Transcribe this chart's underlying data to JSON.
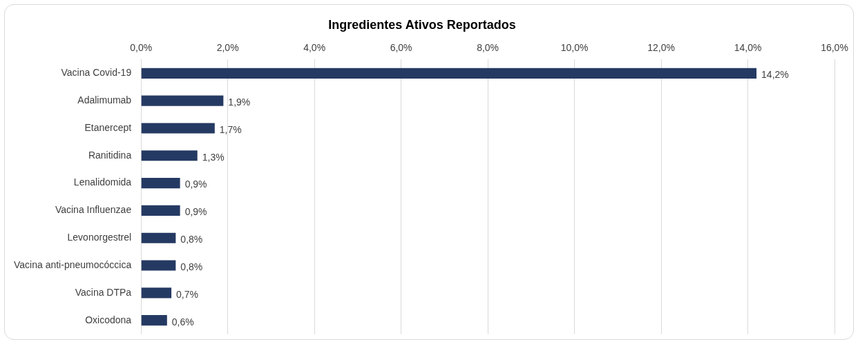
{
  "chart_data": {
    "type": "bar",
    "orientation": "horizontal",
    "title": "Ingredientes Ativos Reportados",
    "categories": [
      "Vacina Covid-19",
      "Adalimumab",
      "Etanercept",
      "Ranitidina",
      "Lenalidomida",
      "Vacina Influenzae",
      "Levonorgestrel",
      "Vacina anti-pneumocóccica",
      "Vacina DTPa",
      "Oxicodona"
    ],
    "values": [
      14.2,
      1.9,
      1.7,
      1.3,
      0.9,
      0.9,
      0.8,
      0.8,
      0.7,
      0.6
    ],
    "value_labels": [
      "14,2%",
      "1,9%",
      "1,7%",
      "1,3%",
      "0,9%",
      "0,9%",
      "0,8%",
      "0,8%",
      "0,7%",
      "0,6%"
    ],
    "color": "#253a63",
    "xlim": [
      0,
      16
    ],
    "xticks": [
      {
        "value": 0,
        "label": "0,0%"
      },
      {
        "value": 2,
        "label": "2,0%"
      },
      {
        "value": 4,
        "label": "4,0%"
      },
      {
        "value": 6,
        "label": "6,0%"
      },
      {
        "value": 8,
        "label": "8,0%"
      },
      {
        "value": 10,
        "label": "10,0%"
      },
      {
        "value": 12,
        "label": "12,0%"
      },
      {
        "value": 14,
        "label": "14,0%"
      },
      {
        "value": 16,
        "label": "16,0%"
      }
    ],
    "grid": "x",
    "legend": false
  }
}
